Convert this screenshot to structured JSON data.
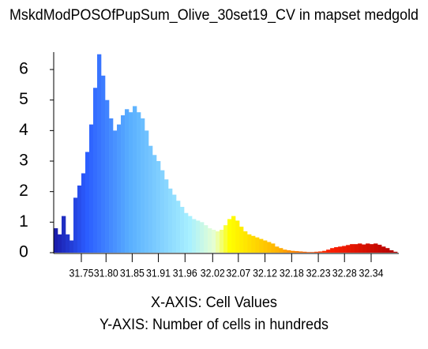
{
  "chart_data": {
    "type": "histogram",
    "title": "MskdModPOSOfPupSum_Olive_30set19_CV in mapset medgold",
    "xlabel": "X-AXIS: Cell Values",
    "ylabel": "Y-AXIS: Number of cells in hundreds",
    "bins": [
      31.694,
      31.702,
      31.71,
      31.718,
      31.726,
      31.734,
      31.742,
      31.75,
      31.758,
      31.766,
      31.774,
      31.782,
      31.79,
      31.798,
      31.806,
      31.814,
      31.822,
      31.83,
      31.838,
      31.846,
      31.854,
      31.862,
      31.87,
      31.878,
      31.886,
      31.894,
      31.902,
      31.91,
      31.918,
      31.926,
      31.934,
      31.942,
      31.95,
      31.958,
      31.966,
      31.974,
      31.982,
      31.99,
      31.998,
      32.006,
      32.014,
      32.022,
      32.03,
      32.038,
      32.046,
      32.054,
      32.062,
      32.07,
      32.078,
      32.086,
      32.094,
      32.102,
      32.11,
      32.118,
      32.126,
      32.134,
      32.142,
      32.15,
      32.158,
      32.166,
      32.174,
      32.182,
      32.19,
      32.198,
      32.206,
      32.214,
      32.222,
      32.23,
      32.238,
      32.246,
      32.254,
      32.262,
      32.27,
      32.278,
      32.286,
      32.294,
      32.302,
      32.31,
      32.318,
      32.326,
      32.334,
      32.342,
      32.35,
      32.358,
      32.366,
      32.374,
      32.382,
      32.39
    ],
    "values": [
      0.8,
      0.6,
      1.2,
      0.6,
      0.4,
      1.8,
      2.2,
      2.6,
      3.3,
      4.2,
      5.4,
      6.5,
      5.8,
      5.0,
      4.4,
      4.0,
      4.2,
      4.5,
      4.7,
      4.6,
      4.8,
      4.6,
      4.4,
      4.0,
      3.5,
      3.2,
      3.0,
      2.7,
      2.4,
      2.1,
      1.9,
      1.7,
      1.5,
      1.3,
      1.2,
      1.1,
      1.05,
      1.0,
      0.9,
      0.8,
      0.75,
      0.7,
      0.75,
      0.9,
      1.1,
      1.2,
      1.05,
      0.85,
      0.7,
      0.6,
      0.55,
      0.5,
      0.45,
      0.4,
      0.35,
      0.3,
      0.2,
      0.15,
      0.1,
      0.08,
      0.06,
      0.05,
      0.04,
      0.03,
      0.02,
      0.02,
      0.03,
      0.04,
      0.06,
      0.1,
      0.15,
      0.18,
      0.2,
      0.22,
      0.25,
      0.28,
      0.28,
      0.3,
      0.27,
      0.3,
      0.28,
      0.3,
      0.26,
      0.2,
      0.15,
      0.08,
      0.03
    ],
    "color_stops": [
      {
        "value": 31.694,
        "color": "#1a1aa8"
      },
      {
        "value": 31.76,
        "color": "#2a5cff"
      },
      {
        "value": 31.85,
        "color": "#5ab0ff"
      },
      {
        "value": 31.97,
        "color": "#a8f0ff"
      },
      {
        "value": 32.02,
        "color": "#e8ffd0"
      },
      {
        "value": 32.05,
        "color": "#ffff00"
      },
      {
        "value": 32.15,
        "color": "#ffb000"
      },
      {
        "value": 32.25,
        "color": "#ff2000"
      },
      {
        "value": 32.39,
        "color": "#b00000"
      }
    ],
    "xlim": [
      31.694,
      32.393
    ],
    "ylim": [
      0,
      6.57
    ],
    "xticks": [
      {
        "value": 31.75,
        "label": "31.75"
      },
      {
        "value": 31.8,
        "label": "31.80"
      },
      {
        "value": 31.853,
        "label": "31.85"
      },
      {
        "value": 31.906,
        "label": "31.91"
      },
      {
        "value": 31.96,
        "label": "31.96"
      },
      {
        "value": 32.016,
        "label": "32.02"
      },
      {
        "value": 32.068,
        "label": "32.07"
      },
      {
        "value": 32.122,
        "label": "32.12"
      },
      {
        "value": 32.176,
        "label": "32.18"
      },
      {
        "value": 32.23,
        "label": "32.23"
      },
      {
        "value": 32.283,
        "label": "32.28"
      },
      {
        "value": 32.337,
        "label": "32.34"
      }
    ],
    "yticks": [
      0,
      1,
      2,
      3,
      4,
      5,
      6
    ],
    "grid": false
  }
}
